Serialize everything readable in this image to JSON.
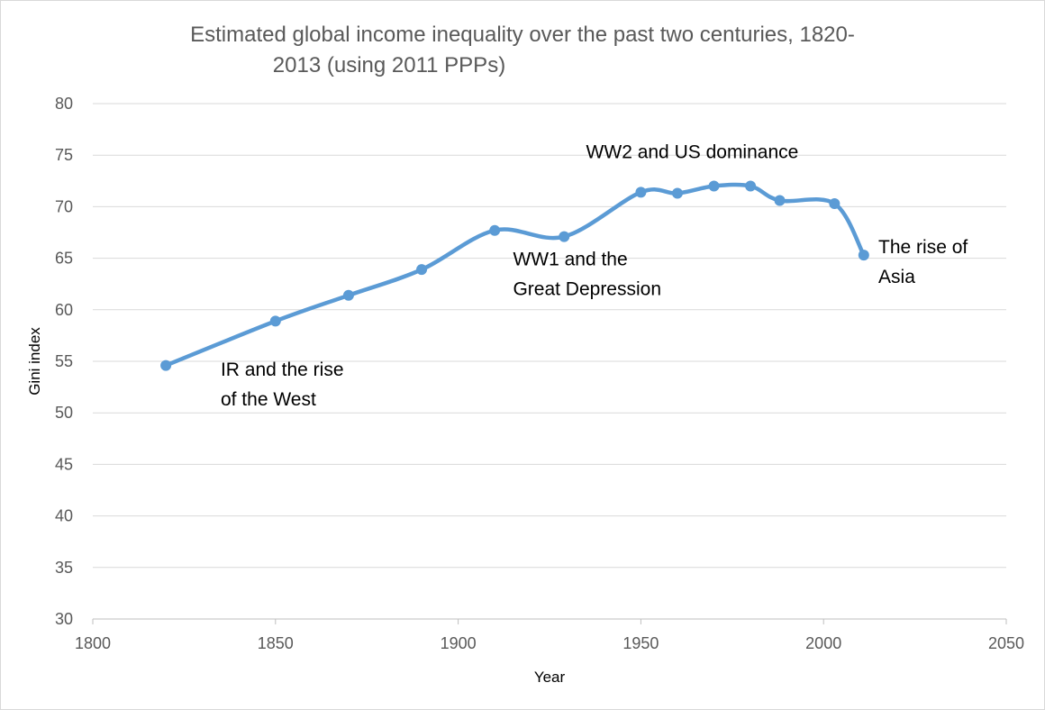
{
  "chart_data": {
    "type": "line",
    "title": [
      "Estimated global  income inequality over the past two centuries, 1820-",
      "2013 (using 2011 PPPs)"
    ],
    "xlabel": "Year",
    "ylabel": "Gini index",
    "xlim": [
      1800,
      2050
    ],
    "ylim": [
      30,
      80
    ],
    "xticks": [
      1800,
      1850,
      1900,
      1950,
      2000,
      2050
    ],
    "yticks": [
      30,
      35,
      40,
      45,
      50,
      55,
      60,
      65,
      70,
      75,
      80
    ],
    "grid": "horizontal",
    "smooth": true,
    "series": [
      {
        "name": "Gini index",
        "color": "#5B9BD5",
        "x": [
          1820,
          1850,
          1870,
          1890,
          1910,
          1929,
          1950,
          1960,
          1970,
          1980,
          1988,
          2003,
          2011
        ],
        "y": [
          54.6,
          58.9,
          61.4,
          63.9,
          67.7,
          67.1,
          71.4,
          71.3,
          72.0,
          72.0,
          70.6,
          70.3,
          65.3
        ]
      }
    ],
    "annotations": [
      {
        "lines": [
          "IR and the rise",
          "of the West"
        ],
        "x": 1835,
        "y": 53.6
      },
      {
        "lines": [
          "WW1 and the",
          "Great Depression"
        ],
        "x": 1915,
        "y": 64.3
      },
      {
        "lines": [
          "WW2 and US dominance"
        ],
        "x": 1935,
        "y": 74.7
      },
      {
        "lines": [
          "The rise of",
          "Asia"
        ],
        "x": 2015,
        "y": 65.5
      }
    ]
  }
}
